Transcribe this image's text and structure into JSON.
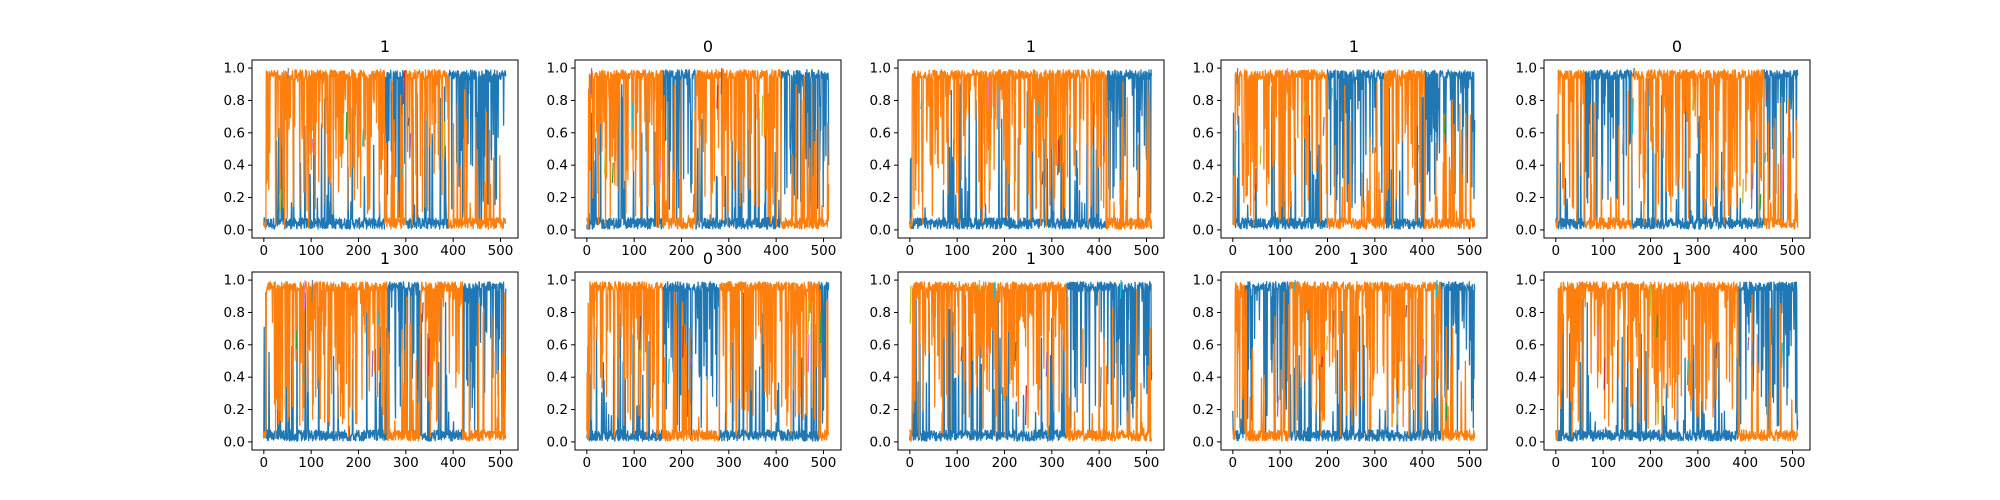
{
  "figure": {
    "colors": {
      "primary": "#1f77b4",
      "secondary": "#ff7f0e",
      "accents": [
        "#17becf",
        "#bcbd22",
        "#2ca02c",
        "#9467bd",
        "#e377c2",
        "#d62728",
        "#8c564b",
        "#7f7f7f"
      ],
      "axis": "#000000",
      "background": "#ffffff"
    }
  },
  "chart_data": [
    {
      "type": "line",
      "title": "1",
      "x_ticks": [
        0,
        100,
        200,
        300,
        400,
        500
      ],
      "y_ticks": [
        "0.0",
        "0.2",
        "0.4",
        "0.6",
        "0.8",
        "1.0"
      ],
      "xlim": [
        -25,
        537
      ],
      "ylim": [
        -0.05,
        1.05
      ],
      "series": [
        {
          "color": "#1f77b4",
          "segments": [
            {
              "x": [
                0,
                5
              ],
              "level": 0.5
            },
            {
              "x": [
                5,
                255
              ],
              "level": 0.05
            },
            {
              "x": [
                255,
                300
              ],
              "level": 0.9
            },
            {
              "x": [
                300,
                390
              ],
              "level": 0.05
            },
            {
              "x": [
                390,
                512
              ],
              "level": 0.95
            }
          ]
        },
        {
          "color": "#ff7f0e",
          "segments": [
            {
              "x": [
                0,
                5
              ],
              "level": 0.5
            },
            {
              "x": [
                5,
                255
              ],
              "level": 0.95
            },
            {
              "x": [
                255,
                300
              ],
              "level": 0.1
            },
            {
              "x": [
                300,
                390
              ],
              "level": 0.95
            },
            {
              "x": [
                390,
                512
              ],
              "level": 0.04
            }
          ]
        }
      ]
    },
    {
      "type": "line",
      "title": "0",
      "x_ticks": [
        0,
        100,
        200,
        300,
        400,
        500
      ],
      "y_ticks": [
        "0.0",
        "0.2",
        "0.4",
        "0.6",
        "0.8",
        "1.0"
      ],
      "xlim": [
        -25,
        537
      ],
      "ylim": [
        -0.05,
        1.05
      ],
      "series": [
        {
          "color": "#1f77b4",
          "segments": [
            {
              "x": [
                0,
                5
              ],
              "level": 0.5
            },
            {
              "x": [
                5,
                160
              ],
              "level": 0.05
            },
            {
              "x": [
                160,
                230
              ],
              "level": 0.95
            },
            {
              "x": [
                230,
                410
              ],
              "level": 0.05
            },
            {
              "x": [
                410,
                512
              ],
              "level": 0.95
            }
          ]
        },
        {
          "color": "#ff7f0e",
          "segments": [
            {
              "x": [
                0,
                5
              ],
              "level": 0.5
            },
            {
              "x": [
                5,
                160
              ],
              "level": 0.95
            },
            {
              "x": [
                160,
                230
              ],
              "level": 0.05
            },
            {
              "x": [
                230,
                410
              ],
              "level": 0.95
            },
            {
              "x": [
                410,
                512
              ],
              "level": 0.04
            }
          ]
        }
      ]
    },
    {
      "type": "line",
      "title": "1",
      "x_ticks": [
        0,
        100,
        200,
        300,
        400,
        500
      ],
      "y_ticks": [
        "0.0",
        "0.2",
        "0.4",
        "0.6",
        "0.8",
        "1.0"
      ],
      "xlim": [
        -25,
        537
      ],
      "ylim": [
        -0.05,
        1.05
      ],
      "series": [
        {
          "color": "#1f77b4",
          "segments": [
            {
              "x": [
                0,
                5
              ],
              "level": 0.5
            },
            {
              "x": [
                5,
                415
              ],
              "level": 0.05
            },
            {
              "x": [
                415,
                512
              ],
              "level": 0.95
            }
          ]
        },
        {
          "color": "#ff7f0e",
          "segments": [
            {
              "x": [
                0,
                5
              ],
              "level": 0.5
            },
            {
              "x": [
                5,
                415
              ],
              "level": 0.95
            },
            {
              "x": [
                415,
                512
              ],
              "level": 0.04
            }
          ]
        }
      ]
    },
    {
      "type": "line",
      "title": "1",
      "x_ticks": [
        0,
        100,
        200,
        300,
        400,
        500
      ],
      "y_ticks": [
        "0.0",
        "0.2",
        "0.4",
        "0.6",
        "0.8",
        "1.0"
      ],
      "xlim": [
        -25,
        537
      ],
      "ylim": [
        -0.05,
        1.05
      ],
      "series": [
        {
          "color": "#1f77b4",
          "segments": [
            {
              "x": [
                0,
                5
              ],
              "level": 0.5
            },
            {
              "x": [
                5,
                200
              ],
              "level": 0.05
            },
            {
              "x": [
                200,
                320
              ],
              "level": 0.95
            },
            {
              "x": [
                320,
                405
              ],
              "level": 0.05
            },
            {
              "x": [
                405,
                512
              ],
              "level": 0.95
            }
          ]
        },
        {
          "color": "#ff7f0e",
          "segments": [
            {
              "x": [
                0,
                5
              ],
              "level": 0.5
            },
            {
              "x": [
                5,
                200
              ],
              "level": 0.95
            },
            {
              "x": [
                200,
                320
              ],
              "level": 0.05
            },
            {
              "x": [
                320,
                405
              ],
              "level": 0.95
            },
            {
              "x": [
                405,
                512
              ],
              "level": 0.04
            }
          ]
        }
      ]
    },
    {
      "type": "line",
      "title": "0",
      "x_ticks": [
        0,
        100,
        200,
        300,
        400,
        500
      ],
      "y_ticks": [
        "0.0",
        "0.2",
        "0.4",
        "0.6",
        "0.8",
        "1.0"
      ],
      "xlim": [
        -25,
        537
      ],
      "ylim": [
        -0.05,
        1.05
      ],
      "series": [
        {
          "color": "#1f77b4",
          "segments": [
            {
              "x": [
                0,
                5
              ],
              "level": 0.5
            },
            {
              "x": [
                5,
                60
              ],
              "level": 0.05
            },
            {
              "x": [
                60,
                160
              ],
              "level": 0.95
            },
            {
              "x": [
                160,
                440
              ],
              "level": 0.05
            },
            {
              "x": [
                440,
                512
              ],
              "level": 0.95
            }
          ]
        },
        {
          "color": "#ff7f0e",
          "segments": [
            {
              "x": [
                0,
                5
              ],
              "level": 0.5
            },
            {
              "x": [
                5,
                60
              ],
              "level": 0.95
            },
            {
              "x": [
                60,
                160
              ],
              "level": 0.05
            },
            {
              "x": [
                160,
                440
              ],
              "level": 0.95
            },
            {
              "x": [
                440,
                512
              ],
              "level": 0.04
            }
          ]
        }
      ]
    },
    {
      "type": "line",
      "title": "1",
      "x_ticks": [
        0,
        100,
        200,
        300,
        400,
        500
      ],
      "y_ticks": [
        "0.0",
        "0.2",
        "0.4",
        "0.6",
        "0.8",
        "1.0"
      ],
      "xlim": [
        -25,
        537
      ],
      "ylim": [
        -0.05,
        1.05
      ],
      "series": [
        {
          "color": "#1f77b4",
          "segments": [
            {
              "x": [
                0,
                5
              ],
              "level": 0.5
            },
            {
              "x": [
                5,
                260
              ],
              "level": 0.05
            },
            {
              "x": [
                260,
                330
              ],
              "level": 0.95
            },
            {
              "x": [
                330,
                420
              ],
              "level": 0.05
            },
            {
              "x": [
                420,
                512
              ],
              "level": 0.95
            }
          ]
        },
        {
          "color": "#ff7f0e",
          "segments": [
            {
              "x": [
                0,
                5
              ],
              "level": 0.5
            },
            {
              "x": [
                5,
                260
              ],
              "level": 0.95
            },
            {
              "x": [
                260,
                330
              ],
              "level": 0.05
            },
            {
              "x": [
                330,
                420
              ],
              "level": 0.95
            },
            {
              "x": [
                420,
                512
              ],
              "level": 0.04
            }
          ]
        }
      ]
    },
    {
      "type": "line",
      "title": "0",
      "x_ticks": [
        0,
        100,
        200,
        300,
        400,
        500
      ],
      "y_ticks": [
        "0.0",
        "0.2",
        "0.4",
        "0.6",
        "0.8",
        "1.0"
      ],
      "xlim": [
        -25,
        537
      ],
      "ylim": [
        -0.05,
        1.05
      ],
      "series": [
        {
          "color": "#1f77b4",
          "segments": [
            {
              "x": [
                0,
                5
              ],
              "level": 0.5
            },
            {
              "x": [
                5,
                160
              ],
              "level": 0.05
            },
            {
              "x": [
                160,
                280
              ],
              "level": 0.95
            },
            {
              "x": [
                280,
                490
              ],
              "level": 0.05
            },
            {
              "x": [
                490,
                512
              ],
              "level": 0.95
            }
          ]
        },
        {
          "color": "#ff7f0e",
          "segments": [
            {
              "x": [
                0,
                5
              ],
              "level": 0.5
            },
            {
              "x": [
                5,
                160
              ],
              "level": 0.95
            },
            {
              "x": [
                160,
                280
              ],
              "level": 0.05
            },
            {
              "x": [
                280,
                490
              ],
              "level": 0.95
            },
            {
              "x": [
                490,
                512
              ],
              "level": 0.04
            }
          ]
        }
      ]
    },
    {
      "type": "line",
      "title": "1",
      "x_ticks": [
        0,
        100,
        200,
        300,
        400,
        500
      ],
      "y_ticks": [
        "0.0",
        "0.2",
        "0.4",
        "0.6",
        "0.8",
        "1.0"
      ],
      "xlim": [
        -25,
        537
      ],
      "ylim": [
        -0.05,
        1.05
      ],
      "series": [
        {
          "color": "#1f77b4",
          "segments": [
            {
              "x": [
                0,
                5
              ],
              "level": 0.5
            },
            {
              "x": [
                5,
                330
              ],
              "level": 0.05
            },
            {
              "x": [
                330,
                512
              ],
              "level": 0.95
            }
          ]
        },
        {
          "color": "#ff7f0e",
          "segments": [
            {
              "x": [
                0,
                5
              ],
              "level": 0.5
            },
            {
              "x": [
                5,
                330
              ],
              "level": 0.95
            },
            {
              "x": [
                330,
                512
              ],
              "level": 0.06
            }
          ]
        }
      ]
    },
    {
      "type": "line",
      "title": "1",
      "x_ticks": [
        0,
        100,
        200,
        300,
        400,
        500
      ],
      "y_ticks": [
        "0.0",
        "0.2",
        "0.4",
        "0.6",
        "0.8",
        "1.0"
      ],
      "xlim": [
        -25,
        537
      ],
      "ylim": [
        -0.05,
        1.05
      ],
      "series": [
        {
          "color": "#1f77b4",
          "segments": [
            {
              "x": [
                0,
                5
              ],
              "level": 0.5
            },
            {
              "x": [
                5,
                25
              ],
              "level": 0.1
            },
            {
              "x": [
                25,
                120
              ],
              "level": 0.95
            },
            {
              "x": [
                120,
                440
              ],
              "level": 0.05
            },
            {
              "x": [
                440,
                512
              ],
              "level": 0.95
            }
          ]
        },
        {
          "color": "#ff7f0e",
          "segments": [
            {
              "x": [
                0,
                5
              ],
              "level": 0.5
            },
            {
              "x": [
                5,
                25
              ],
              "level": 0.9
            },
            {
              "x": [
                25,
                120
              ],
              "level": 0.05
            },
            {
              "x": [
                120,
                440
              ],
              "level": 0.95
            },
            {
              "x": [
                440,
                512
              ],
              "level": 0.04
            }
          ]
        }
      ]
    },
    {
      "type": "line",
      "title": "1",
      "x_ticks": [
        0,
        100,
        200,
        300,
        400,
        500
      ],
      "y_ticks": [
        "0.0",
        "0.2",
        "0.4",
        "0.6",
        "0.8",
        "1.0"
      ],
      "xlim": [
        -25,
        537
      ],
      "ylim": [
        -0.05,
        1.05
      ],
      "series": [
        {
          "color": "#1f77b4",
          "segments": [
            {
              "x": [
                0,
                5
              ],
              "level": 0.5
            },
            {
              "x": [
                5,
                385
              ],
              "level": 0.05
            },
            {
              "x": [
                385,
                512
              ],
              "level": 0.95
            }
          ]
        },
        {
          "color": "#ff7f0e",
          "segments": [
            {
              "x": [
                0,
                5
              ],
              "level": 0.5
            },
            {
              "x": [
                5,
                385
              ],
              "level": 0.95
            },
            {
              "x": [
                385,
                512
              ],
              "level": 0.04
            }
          ]
        }
      ]
    }
  ]
}
